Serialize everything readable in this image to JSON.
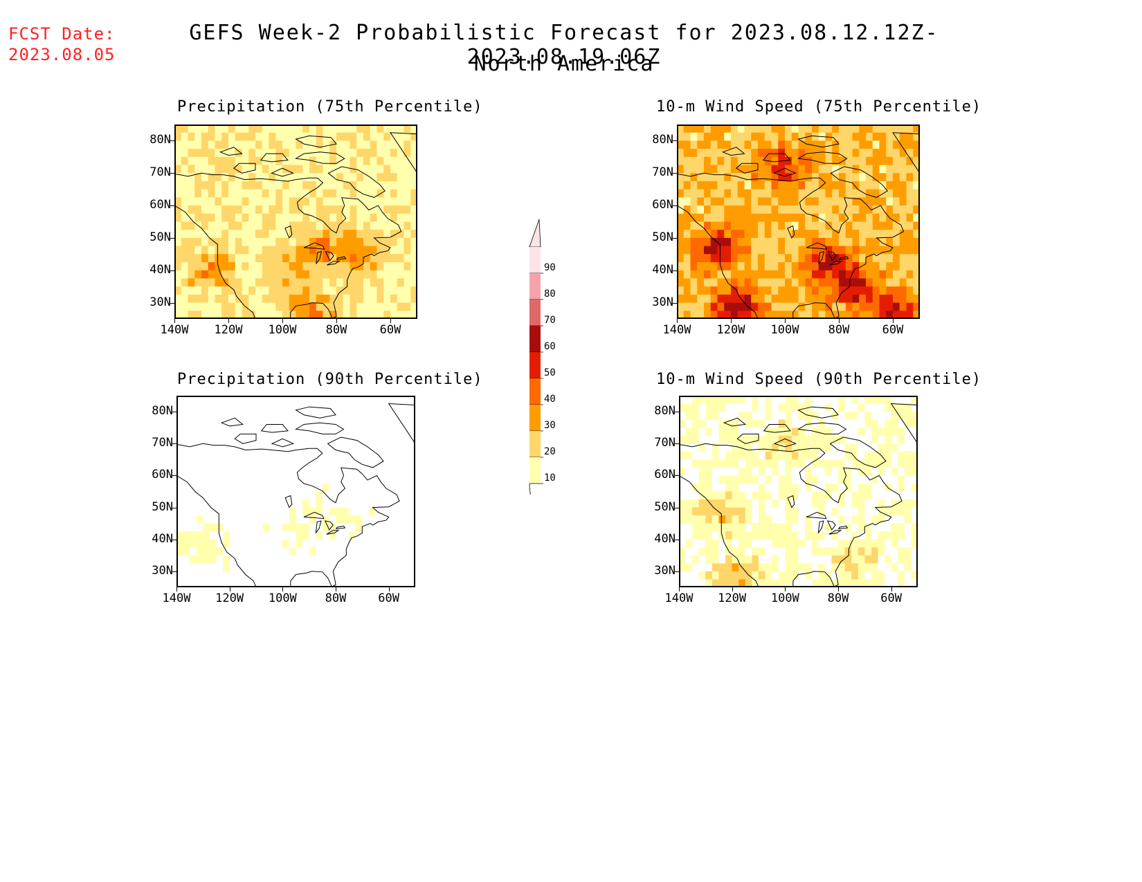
{
  "header": {
    "fcst_label": "FCST Date:",
    "fcst_date": "2023.08.05",
    "title": "GEFS Week-2 Probabilistic Forecast for 2023.08.12.12Z-2023.08.19.06Z",
    "subtitle": "North America"
  },
  "panels": [
    {
      "title": "Precipitation (75th Percentile)",
      "level": "medium"
    },
    {
      "title": "10-m Wind Speed (75th Percentile)",
      "level": "high"
    },
    {
      "title": "Precipitation (90th Percentile)",
      "level": "low"
    },
    {
      "title": "10-m Wind Speed (90th Percentile)",
      "level": "lowmed"
    }
  ],
  "axes": {
    "lat_labels": [
      "80N",
      "70N",
      "60N",
      "50N",
      "40N",
      "30N"
    ],
    "lon_labels": [
      "140W",
      "120W",
      "100W",
      "80W",
      "60W"
    ]
  },
  "legend": {
    "labels": [
      "90",
      "80",
      "70",
      "60",
      "50",
      "40",
      "30",
      "20",
      "10"
    ],
    "colors": [
      "#fde3e5",
      "#f5a3a8",
      "#e06868",
      "#a80d0d",
      "#e51d00",
      "#ff6a00",
      "#ff9d00",
      "#ffd66a",
      "#ffffae"
    ]
  },
  "colors": {
    "fcst_text": "#ff2020",
    "title_text": "#000000",
    "background": "#ffffff"
  }
}
